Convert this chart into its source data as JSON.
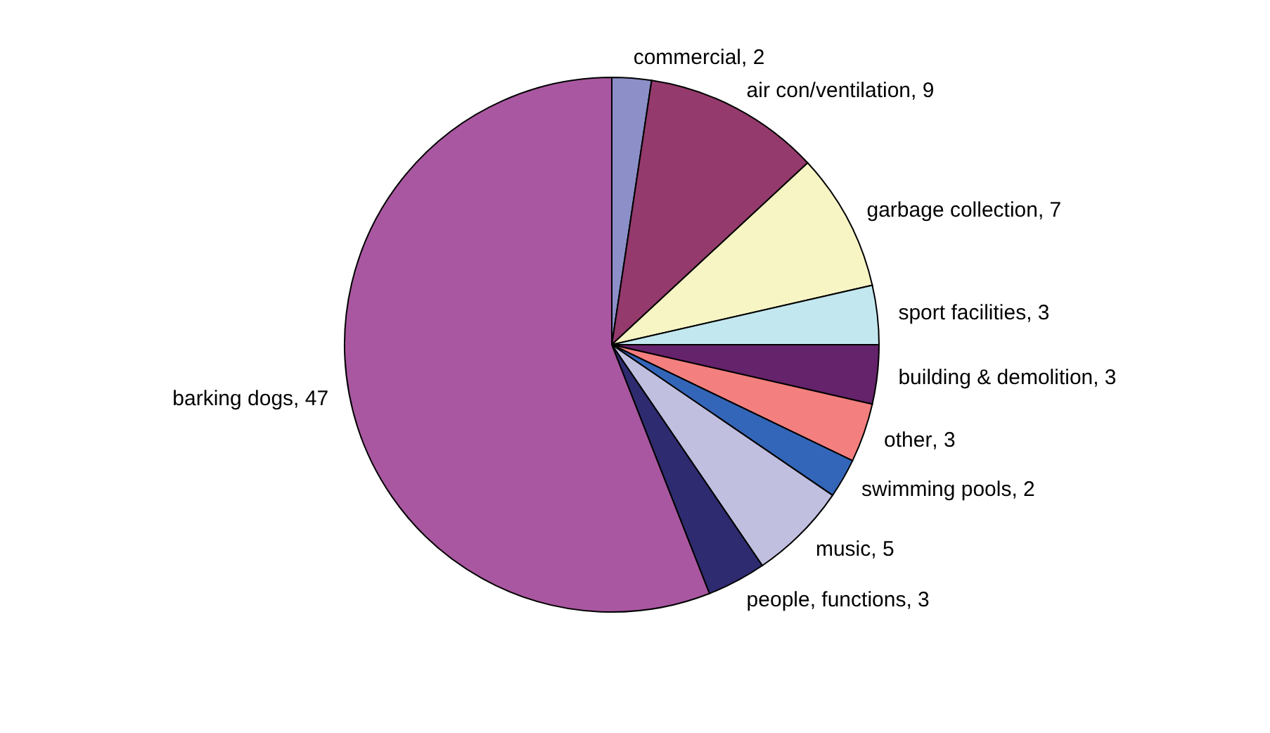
{
  "chart_data": {
    "type": "pie",
    "categories": [
      "commercial",
      "air con/ventilation",
      "garbage collection",
      "sport facilities",
      "building & demolition",
      "other",
      "swimming pools",
      "music",
      "people, functions",
      "barking dogs"
    ],
    "values": [
      2,
      9,
      7,
      3,
      3,
      3,
      2,
      5,
      3,
      47
    ],
    "colors": [
      "#8c8fc8",
      "#943a6c",
      "#f8f5c5",
      "#c3e7ee",
      "#65236b",
      "#f47f7f",
      "#3366b8",
      "#c0bfe0",
      "#2e2b70",
      "#a957a0"
    ],
    "value_labels": [
      ", 2",
      ", 9",
      ", 7",
      ", 3",
      ", 3",
      ", 3",
      ", 2",
      ", 5",
      ", 3",
      ", 47"
    ],
    "legend": false
  }
}
